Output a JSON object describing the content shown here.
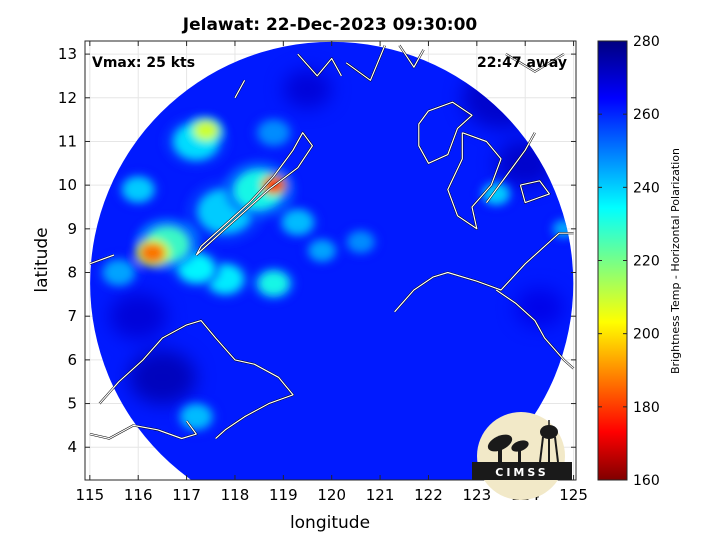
{
  "chart_data": {
    "type": "heatmap",
    "title": "Jelawat: 22-Dec-2023 09:30:00",
    "xlabel": "longitude",
    "ylabel": "latitude",
    "xlim": [
      114.9,
      125.05
    ],
    "ylim": [
      3.25,
      13.3
    ],
    "xticks": [
      115,
      116,
      117,
      118,
      119,
      120,
      121,
      122,
      123,
      124,
      125
    ],
    "yticks": [
      4,
      5,
      6,
      7,
      8,
      9,
      10,
      11,
      12,
      13
    ],
    "grid": true,
    "colorbar": {
      "label": "Brightness Temp - Horizontal Polarization",
      "range": [
        160,
        280
      ],
      "ticks": [
        160,
        180,
        200,
        220,
        240,
        260,
        280
      ],
      "colormap": "jet"
    },
    "annotations": {
      "vmax": "Vmax: 25 kts",
      "away": "22:47 away"
    },
    "swath_center": {
      "lon": 120.0,
      "lat": 7.75
    },
    "swath_background_temp": 262,
    "hotspots": [
      {
        "lon": 116.3,
        "lat": 8.45,
        "temp": 188,
        "spread": 0.25
      },
      {
        "lon": 116.6,
        "lat": 8.65,
        "temp": 228,
        "spread": 0.45
      },
      {
        "lon": 117.2,
        "lat": 8.1,
        "temp": 235,
        "spread": 0.35
      },
      {
        "lon": 117.4,
        "lat": 11.25,
        "temp": 210,
        "spread": 0.25
      },
      {
        "lon": 117.2,
        "lat": 11.0,
        "temp": 238,
        "spread": 0.45
      },
      {
        "lon": 118.8,
        "lat": 10.0,
        "temp": 175,
        "spread": 0.18
      },
      {
        "lon": 118.5,
        "lat": 9.9,
        "temp": 232,
        "spread": 0.5
      },
      {
        "lon": 117.8,
        "lat": 9.4,
        "temp": 240,
        "spread": 0.55
      },
      {
        "lon": 117.8,
        "lat": 7.85,
        "temp": 236,
        "spread": 0.35
      },
      {
        "lon": 118.8,
        "lat": 7.75,
        "temp": 232,
        "spread": 0.3
      },
      {
        "lon": 119.3,
        "lat": 9.15,
        "temp": 242,
        "spread": 0.3
      },
      {
        "lon": 119.8,
        "lat": 8.5,
        "temp": 245,
        "spread": 0.25
      },
      {
        "lon": 120.6,
        "lat": 8.7,
        "temp": 248,
        "spread": 0.25
      },
      {
        "lon": 116.0,
        "lat": 9.9,
        "temp": 240,
        "spread": 0.3
      },
      {
        "lon": 118.8,
        "lat": 11.2,
        "temp": 248,
        "spread": 0.3
      },
      {
        "lon": 117.2,
        "lat": 4.7,
        "temp": 242,
        "spread": 0.3
      },
      {
        "lon": 123.4,
        "lat": 9.8,
        "temp": 240,
        "spread": 0.25
      },
      {
        "lon": 124.8,
        "lat": 9.0,
        "temp": 245,
        "spread": 0.2
      },
      {
        "lon": 115.6,
        "lat": 8.0,
        "temp": 245,
        "spread": 0.3
      }
    ],
    "cold_zones": [
      {
        "lon": 116.5,
        "lat": 5.6,
        "temp": 274,
        "spread": 0.7
      },
      {
        "lon": 116.0,
        "lat": 7.0,
        "temp": 270,
        "spread": 0.6
      },
      {
        "lon": 123.5,
        "lat": 12.0,
        "temp": 272,
        "spread": 0.8
      },
      {
        "lon": 124.0,
        "lat": 10.5,
        "temp": 272,
        "spread": 0.6
      },
      {
        "lon": 124.3,
        "lat": 7.2,
        "temp": 268,
        "spread": 0.5
      },
      {
        "lon": 119.5,
        "lat": 12.2,
        "temp": 270,
        "spread": 0.5
      }
    ],
    "coastlines": [
      [
        [
          115.0,
          4.3
        ],
        [
          115.4,
          4.2
        ],
        [
          115.9,
          4.5
        ],
        [
          116.4,
          4.4
        ],
        [
          116.9,
          4.2
        ],
        [
          117.2,
          4.3
        ],
        [
          117.0,
          4.6
        ]
      ],
      [
        [
          115.2,
          5.0
        ],
        [
          115.6,
          5.5
        ],
        [
          116.1,
          6.0
        ],
        [
          116.5,
          6.5
        ],
        [
          117.0,
          6.8
        ],
        [
          117.3,
          6.9
        ],
        [
          117.6,
          6.5
        ],
        [
          118.0,
          6.0
        ],
        [
          118.4,
          5.9
        ],
        [
          118.9,
          5.6
        ],
        [
          119.2,
          5.2
        ],
        [
          118.7,
          5.0
        ],
        [
          118.2,
          4.7
        ],
        [
          117.8,
          4.4
        ],
        [
          117.6,
          4.2
        ]
      ],
      [
        [
          117.2,
          8.4
        ],
        [
          117.7,
          8.9
        ],
        [
          118.2,
          9.4
        ],
        [
          118.7,
          9.9
        ],
        [
          119.3,
          10.4
        ],
        [
          119.6,
          10.9
        ],
        [
          119.4,
          11.2
        ],
        [
          119.2,
          10.8
        ],
        [
          118.8,
          10.2
        ],
        [
          118.3,
          9.6
        ],
        [
          117.8,
          9.1
        ],
        [
          117.3,
          8.6
        ],
        [
          117.2,
          8.4
        ]
      ],
      [
        [
          119.3,
          13.0
        ],
        [
          119.7,
          12.5
        ],
        [
          120.0,
          12.9
        ],
        [
          120.2,
          12.5
        ]
      ],
      [
        [
          120.3,
          12.8
        ],
        [
          120.8,
          12.4
        ],
        [
          121.1,
          13.2
        ]
      ],
      [
        [
          121.4,
          13.2
        ],
        [
          121.7,
          12.7
        ],
        [
          121.9,
          13.1
        ]
      ],
      [
        [
          122.0,
          11.7
        ],
        [
          122.5,
          11.9
        ],
        [
          122.9,
          11.6
        ],
        [
          122.6,
          11.3
        ],
        [
          122.4,
          10.7
        ],
        [
          122.0,
          10.5
        ],
        [
          121.8,
          10.9
        ],
        [
          121.8,
          11.4
        ],
        [
          122.0,
          11.7
        ]
      ],
      [
        [
          122.7,
          11.2
        ],
        [
          123.2,
          11.0
        ],
        [
          123.5,
          10.6
        ],
        [
          123.3,
          10.0
        ],
        [
          122.9,
          9.5
        ],
        [
          123.0,
          9.0
        ],
        [
          122.6,
          9.3
        ],
        [
          122.4,
          9.9
        ],
        [
          122.7,
          10.6
        ],
        [
          122.7,
          11.2
        ]
      ],
      [
        [
          123.2,
          9.6
        ],
        [
          123.6,
          10.2
        ],
        [
          124.0,
          10.8
        ],
        [
          124.2,
          11.2
        ]
      ],
      [
        [
          123.9,
          10.0
        ],
        [
          124.3,
          10.1
        ],
        [
          124.5,
          9.8
        ],
        [
          124.0,
          9.6
        ],
        [
          123.9,
          10.0
        ]
      ],
      [
        [
          121.3,
          7.1
        ],
        [
          121.7,
          7.6
        ],
        [
          122.1,
          7.9
        ],
        [
          122.4,
          8.0
        ],
        [
          123.0,
          7.8
        ],
        [
          123.5,
          7.6
        ],
        [
          124.0,
          8.2
        ],
        [
          124.4,
          8.6
        ],
        [
          124.7,
          8.9
        ],
        [
          125.0,
          8.9
        ]
      ],
      [
        [
          123.4,
          7.6
        ],
        [
          123.8,
          7.3
        ],
        [
          124.2,
          6.9
        ],
        [
          124.4,
          6.5
        ],
        [
          124.8,
          6.0
        ],
        [
          125.0,
          5.8
        ]
      ],
      [
        [
          115.0,
          8.2
        ],
        [
          115.5,
          8.4
        ]
      ],
      [
        [
          118.0,
          12.0
        ],
        [
          118.2,
          12.4
        ]
      ],
      [
        [
          123.6,
          13.0
        ],
        [
          124.2,
          12.6
        ],
        [
          124.8,
          13.0
        ]
      ]
    ]
  },
  "logo": {
    "text": "CIMSS"
  }
}
